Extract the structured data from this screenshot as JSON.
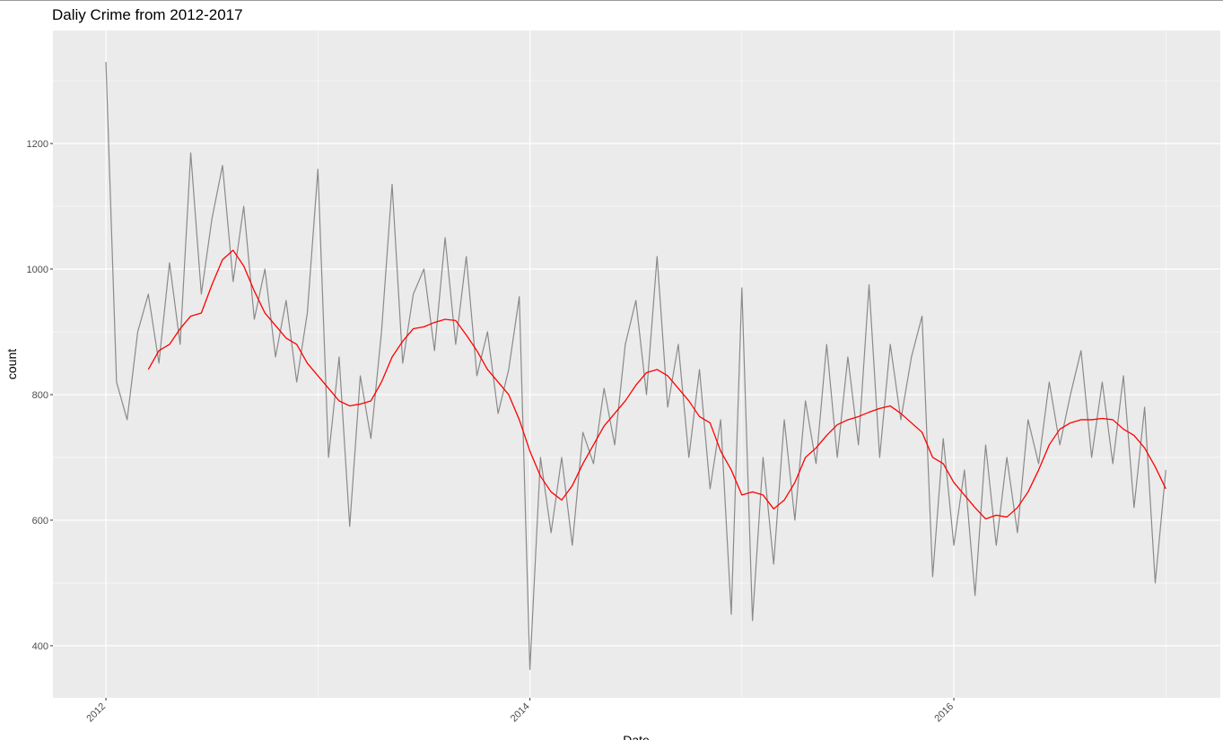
{
  "chart_data": {
    "type": "line",
    "title": "Daliy Crime from 2012-2017",
    "x_label": "Date",
    "y_label": "count",
    "x": [
      2012.0,
      2012.05,
      2012.1,
      2012.15,
      2012.2,
      2012.25,
      2012.3,
      2012.35,
      2012.4,
      2012.45,
      2012.5,
      2012.55,
      2012.6,
      2012.65,
      2012.7,
      2012.75,
      2012.8,
      2012.85,
      2012.9,
      2012.95,
      2013.0,
      2013.05,
      2013.1,
      2013.15,
      2013.2,
      2013.25,
      2013.3,
      2013.35,
      2013.4,
      2013.45,
      2013.5,
      2013.55,
      2013.6,
      2013.65,
      2013.7,
      2013.75,
      2013.8,
      2013.85,
      2013.9,
      2013.95,
      2014.0,
      2014.05,
      2014.1,
      2014.15,
      2014.2,
      2014.25,
      2014.3,
      2014.35,
      2014.4,
      2014.45,
      2014.5,
      2014.55,
      2014.6,
      2014.65,
      2014.7,
      2014.75,
      2014.8,
      2014.85,
      2014.9,
      2014.95,
      2015.0,
      2015.05,
      2015.1,
      2015.15,
      2015.2,
      2015.25,
      2015.3,
      2015.35,
      2015.4,
      2015.45,
      2015.5,
      2015.55,
      2015.6,
      2015.65,
      2015.7,
      2015.75,
      2015.8,
      2015.85,
      2015.9,
      2015.95,
      2016.0,
      2016.05,
      2016.1,
      2016.15,
      2016.2,
      2016.25,
      2016.3,
      2016.35,
      2016.4,
      2016.45,
      2016.5,
      2016.55,
      2016.6,
      2016.65,
      2016.7,
      2016.75,
      2016.8,
      2016.85,
      2016.9,
      2016.95,
      2017.0
    ],
    "series": [
      {
        "color": "#7f7f7f",
        "values": [
          1330,
          820,
          760,
          900,
          960,
          850,
          1010,
          880,
          1185,
          960,
          1080,
          1165,
          980,
          1100,
          920,
          1000,
          860,
          950,
          820,
          930,
          1159,
          700,
          860,
          590,
          830,
          730,
          900,
          1135,
          850,
          960,
          1000,
          870,
          1050,
          880,
          1020,
          830,
          900,
          770,
          840,
          956,
          362,
          700,
          580,
          700,
          560,
          740,
          690,
          810,
          720,
          880,
          950,
          800,
          1020,
          780,
          880,
          700,
          840,
          650,
          760,
          450,
          970,
          440,
          700,
          530,
          760,
          600,
          790,
          690,
          880,
          700,
          860,
          720,
          975,
          700,
          880,
          760,
          860,
          925,
          510,
          730,
          560,
          680,
          480,
          720,
          560,
          700,
          580,
          760,
          690,
          820,
          720,
          800,
          870,
          700,
          820,
          690,
          830,
          620,
          780,
          500,
          680
        ]
      },
      {
        "color": "#ff0000",
        "values": [
          null,
          null,
          null,
          null,
          840,
          870,
          880,
          905,
          925,
          930,
          975,
          1015,
          1030,
          1005,
          965,
          930,
          910,
          890,
          880,
          850,
          830,
          810,
          790,
          782,
          785,
          790,
          820,
          860,
          885,
          905,
          908,
          915,
          920,
          918,
          895,
          870,
          840,
          820,
          800,
          760,
          710,
          670,
          645,
          632,
          655,
          690,
          720,
          750,
          770,
          790,
          815,
          835,
          840,
          830,
          810,
          790,
          765,
          755,
          710,
          680,
          640,
          645,
          640,
          618,
          632,
          660,
          700,
          715,
          735,
          752,
          760,
          765,
          772,
          778,
          782,
          770,
          755,
          740,
          700,
          690,
          660,
          640,
          620,
          602,
          608,
          605,
          620,
          645,
          680,
          720,
          745,
          755,
          760,
          760,
          762,
          760,
          745,
          735,
          715,
          685,
          650
        ]
      }
    ],
    "xlim": [
      2011.75,
      2017.257
    ],
    "xticks": [
      2012,
      2014,
      2016
    ],
    "minor_xticks": [
      2013,
      2015,
      2017
    ],
    "ylim": [
      317,
      1380
    ],
    "yticks": [
      400,
      600,
      800,
      1000,
      1200
    ],
    "minor_yticks": [
      500,
      700,
      900,
      1100,
      1300
    ],
    "grid": true,
    "panel_color": "#ebebeb"
  }
}
